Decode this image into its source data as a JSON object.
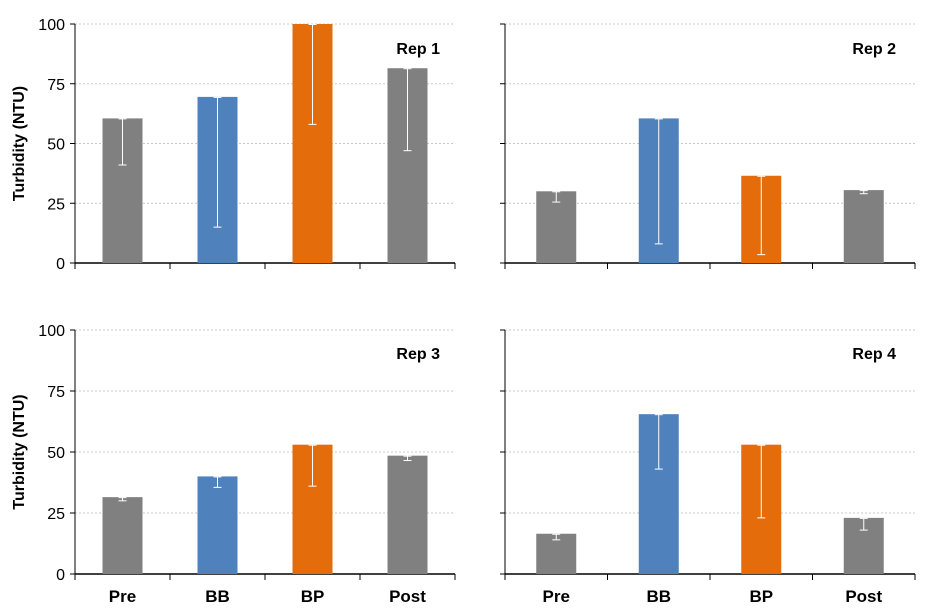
{
  "chart_data": [
    {
      "type": "bar",
      "title": "Rep 1",
      "ylabel": "Turbidity (NTU)",
      "ylim": [
        0,
        100
      ],
      "yticks": [
        "0",
        "25",
        "50",
        "75",
        "100"
      ],
      "categories": [
        "Pre",
        "BB",
        "BP",
        "Post"
      ],
      "values": [
        60.5,
        69.5,
        100,
        81.5
      ],
      "error_low": [
        41,
        15,
        58,
        47
      ],
      "colors": [
        "#808080",
        "#4f81bd",
        "#e46c0a",
        "#808080"
      ],
      "grid": true
    },
    {
      "type": "bar",
      "title": "Rep 2",
      "ylabel": "",
      "ylim": [
        0,
        100
      ],
      "yticks": [],
      "categories": [
        "Pre",
        "BB",
        "BP",
        "Post"
      ],
      "values": [
        30,
        60.5,
        36.5,
        30.5
      ],
      "error_low": [
        25.5,
        8,
        3.5,
        29
      ],
      "colors": [
        "#808080",
        "#4f81bd",
        "#e46c0a",
        "#808080"
      ],
      "grid": true
    },
    {
      "type": "bar",
      "title": "Rep 3",
      "ylabel": "Turbidity (NTU)",
      "ylim": [
        0,
        100
      ],
      "yticks": [
        "0",
        "25",
        "50",
        "75",
        "100"
      ],
      "categories": [
        "Pre",
        "BB",
        "BP",
        "Post"
      ],
      "values": [
        31.5,
        40,
        53,
        48.5
      ],
      "error_low": [
        30,
        35.5,
        36,
        46.5
      ],
      "colors": [
        "#808080",
        "#4f81bd",
        "#e46c0a",
        "#808080"
      ],
      "grid": true
    },
    {
      "type": "bar",
      "title": "Rep 4",
      "ylabel": "",
      "ylim": [
        0,
        100
      ],
      "yticks": [],
      "categories": [
        "Pre",
        "BB",
        "BP",
        "Post"
      ],
      "values": [
        16.5,
        65.5,
        53,
        23
      ],
      "error_low": [
        14,
        43,
        23,
        18
      ],
      "colors": [
        "#808080",
        "#4f81bd",
        "#e46c0a",
        "#808080"
      ],
      "grid": true
    }
  ]
}
